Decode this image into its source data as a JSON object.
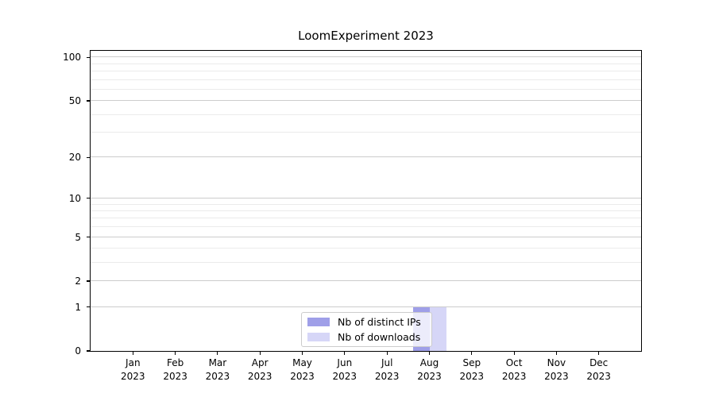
{
  "figure": {
    "title": "LoomExperiment 2023",
    "background_color": "#ffffff"
  },
  "chart_data": {
    "type": "bar",
    "title": "LoomExperiment 2023",
    "xlabel": "",
    "ylabel": "",
    "x_months": [
      "Jan",
      "Feb",
      "Mar",
      "Apr",
      "May",
      "Jun",
      "Jul",
      "Aug",
      "Sep",
      "Oct",
      "Nov",
      "Dec"
    ],
    "x_year": "2023",
    "series": [
      {
        "name": "Nb of distinct IPs",
        "color": "#9f9fe8",
        "values": [
          0,
          0,
          0,
          0,
          0,
          0,
          0,
          1,
          0,
          0,
          0,
          0
        ]
      },
      {
        "name": "Nb of downloads",
        "color": "#d6d6f7",
        "values": [
          0,
          0,
          0,
          0,
          0,
          0,
          0,
          1,
          0,
          0,
          0,
          0
        ]
      }
    ],
    "yscale": "log1p",
    "yticks": [
      0,
      1,
      2,
      5,
      10,
      20,
      50,
      100
    ],
    "yticks_minor": [
      3,
      4,
      6,
      7,
      8,
      9,
      30,
      40,
      60,
      70,
      80,
      90
    ],
    "ylim": [
      0,
      111
    ],
    "grid": true,
    "legend": {
      "position": "lower center",
      "entries": [
        "Nb of distinct IPs",
        "Nb of downloads"
      ]
    }
  },
  "colors": {
    "grid_major": "#cccccc",
    "grid_minor": "#ebebeb",
    "axis_border": "#000000",
    "legend_border": "#cccccc"
  }
}
